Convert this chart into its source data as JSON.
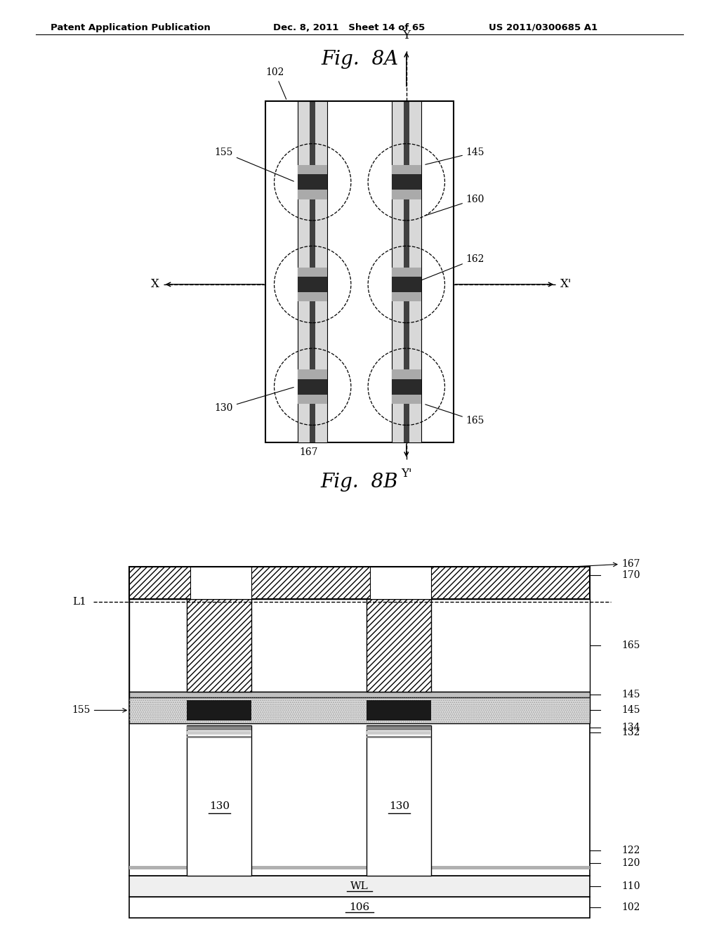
{
  "header_left": "Patent Application Publication",
  "header_mid": "Dec. 8, 2011   Sheet 14 of 65",
  "header_right": "US 2011/0300685 A1",
  "fig_a_title": "Fig.  8A",
  "fig_b_title": "Fig.  8B",
  "bg_color": "#ffffff",
  "line_color": "#000000"
}
